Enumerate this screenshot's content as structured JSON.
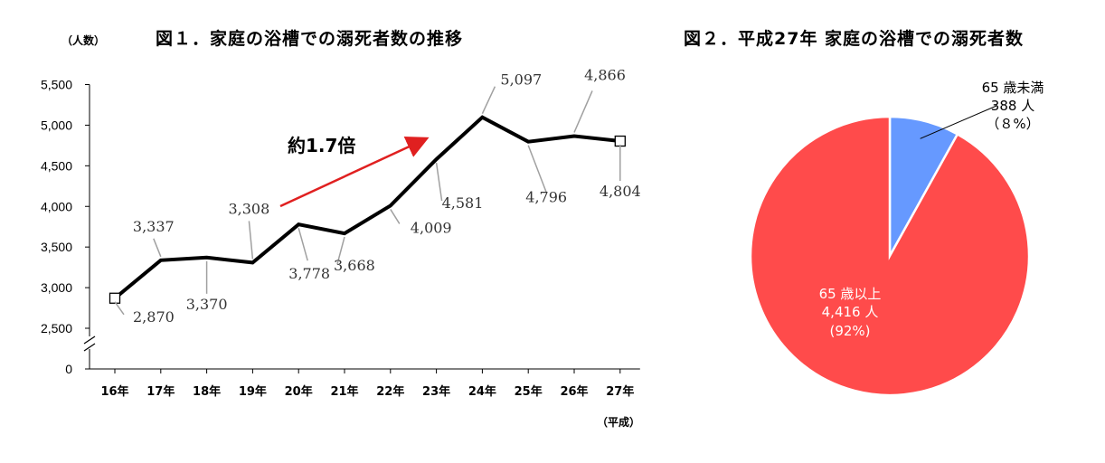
{
  "chart_data": [
    {
      "type": "line",
      "title": "図１．家庭の浴槽での溺死者数の推移",
      "ylabel": "（人数）",
      "xlabel": "（平成）",
      "categories": [
        "16年",
        "17年",
        "18年",
        "19年",
        "20年",
        "21年",
        "22年",
        "23年",
        "24年",
        "25年",
        "26年",
        "27年"
      ],
      "series": [
        {
          "values": [
            2870,
            3337,
            3370,
            3308,
            3778,
            3668,
            4009,
            4581,
            5097,
            4796,
            4866,
            4804
          ]
        }
      ],
      "data_labels": [
        "2,870",
        "3,337",
        "3,370",
        "3,308",
        "3,778",
        "3,668",
        "4,009",
        "4,581",
        "5,097",
        "4,796",
        "4,866",
        "4,804"
      ],
      "ylim": [
        2500,
        5500
      ],
      "yticks": [
        2500,
        3000,
        3500,
        4000,
        4500,
        5000,
        5500
      ],
      "ytick_labels": [
        "2,500",
        "3,000",
        "3,500",
        "4,000",
        "4,500",
        "5,000",
        "5,500"
      ],
      "axis_break_label": "0",
      "annotation": "約1.7倍",
      "grid": false,
      "colors": {
        "line": "#000000",
        "arrow": "#e02020",
        "leader": "#a0a0a0"
      }
    },
    {
      "type": "pie",
      "title": "図２．平成27年 家庭の浴槽での溺死者数",
      "slices": [
        {
          "label": "65 歳未満",
          "value": 388,
          "value_label": "388 人",
          "percent_label": "（８%）",
          "color": "#6699ff"
        },
        {
          "label": "65 歳以上",
          "value": 4416,
          "value_label": "4,416 人",
          "percent_label": "(92%)",
          "color": "#ff4b4b"
        }
      ]
    }
  ]
}
